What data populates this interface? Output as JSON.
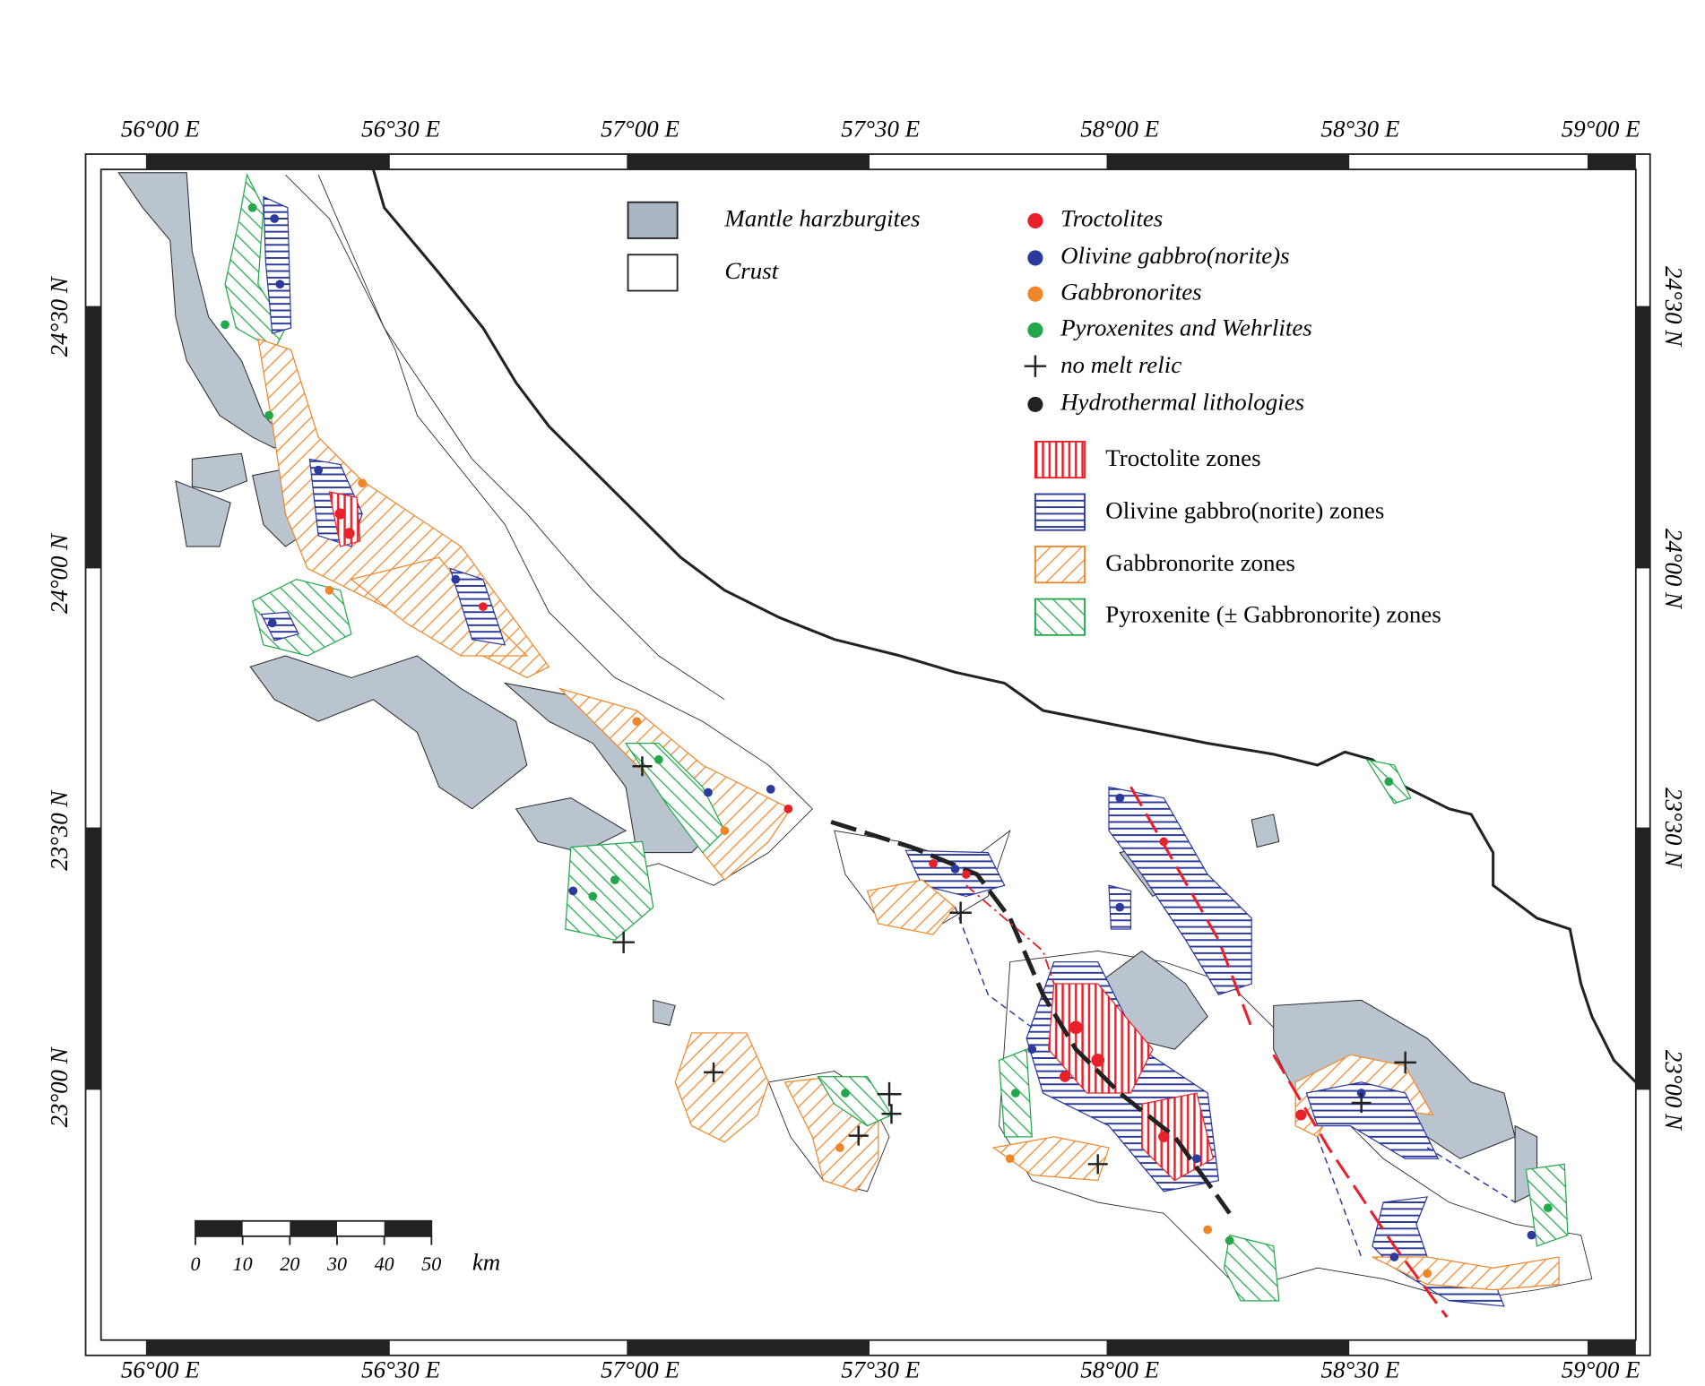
{
  "map": {
    "longitude_labels": [
      "56°00 E",
      "56°30 E",
      "57°00 E",
      "57°30 E",
      "58°00 E",
      "58°30 E",
      "59°00 E"
    ],
    "latitude_labels": [
      "24°30 N",
      "24°00 N",
      "23°30 N",
      "23°00 N"
    ],
    "legend": {
      "units": [
        "Mantle harzburgites",
        "Crust"
      ],
      "samples": [
        "Troctolites",
        "Olivine gabbro(norite)s",
        "Gabbronorites",
        "Pyroxenites and Wehrlites",
        "no melt relic",
        "Hydrothermal lithologies"
      ],
      "zones": [
        "Troctolite zones",
        "Olivine gabbro(norite) zones",
        "Gabbronorite zones",
        "Pyroxenite (± Gabbronorite) zones"
      ]
    },
    "scale_bar": {
      "ticks": [
        "0",
        "10",
        "20",
        "30",
        "40",
        "50"
      ],
      "unit": "km"
    }
  }
}
